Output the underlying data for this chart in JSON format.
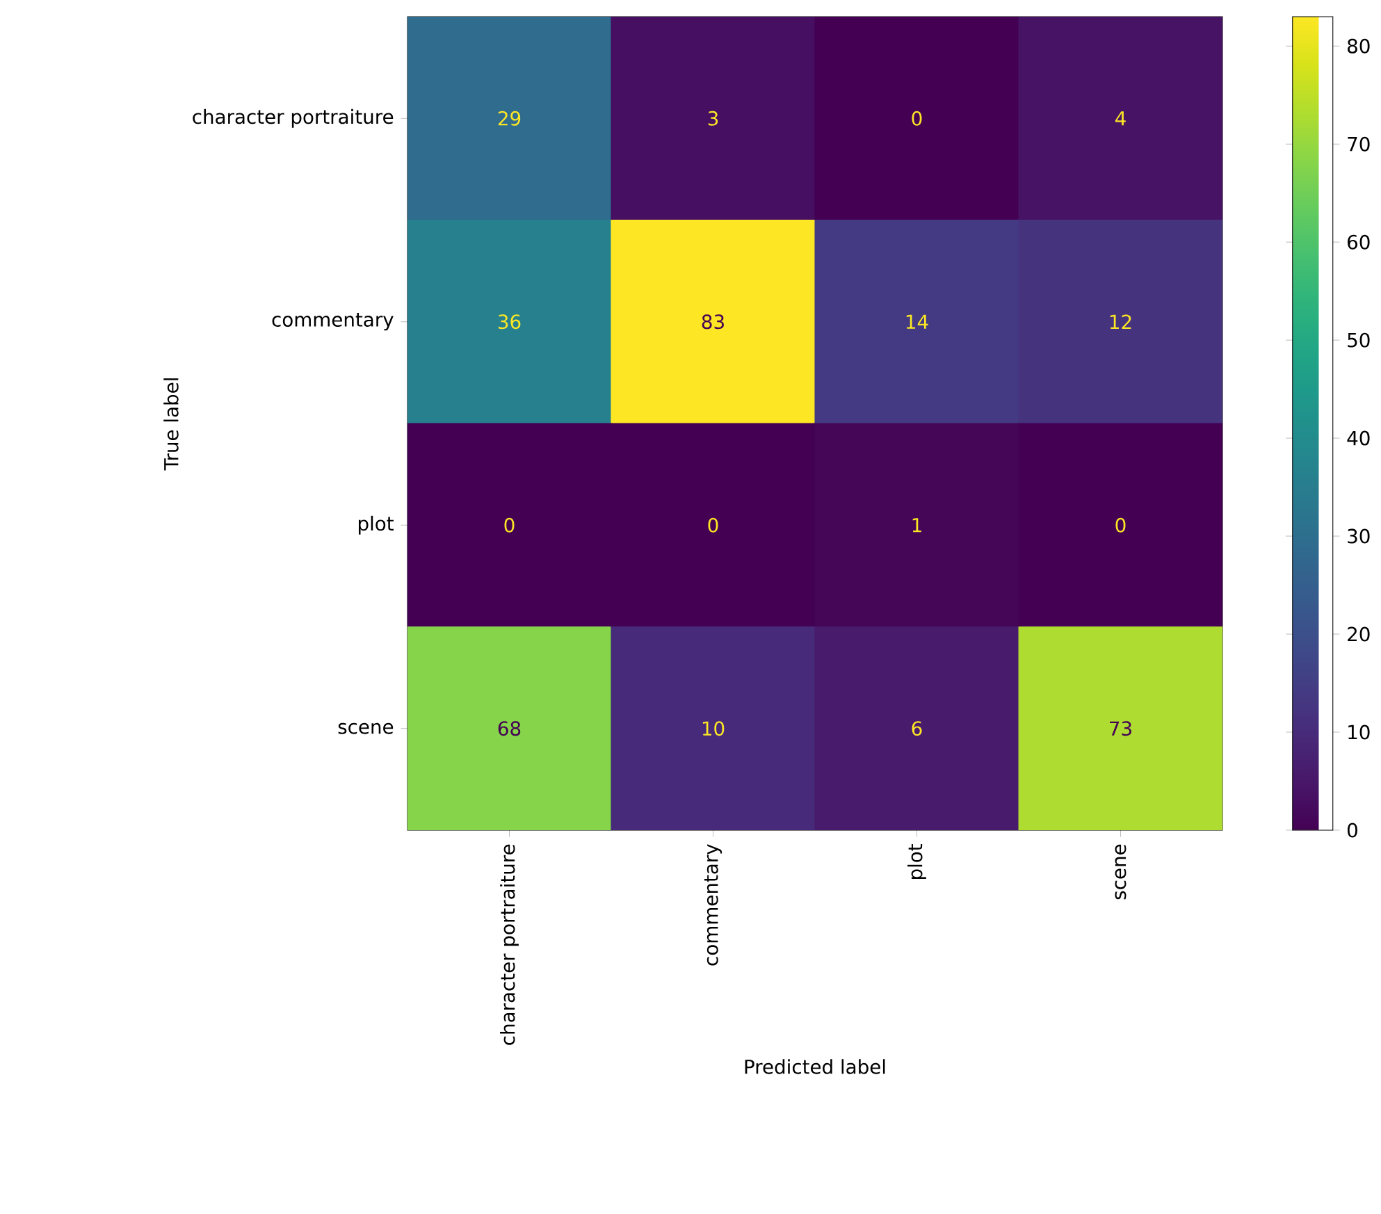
{
  "chart_data": {
    "type": "heatmap",
    "xlabel": "Predicted label",
    "ylabel": "True label",
    "categories": [
      "character portraiture",
      "commentary",
      "plot",
      "scene"
    ],
    "y_categories": [
      "character portraiture",
      "commentary",
      "plot",
      "scene"
    ],
    "cells": [
      [
        29,
        3,
        0,
        4
      ],
      [
        36,
        83,
        14,
        12
      ],
      [
        0,
        0,
        1,
        0
      ],
      [
        68,
        10,
        6,
        73
      ]
    ],
    "clim": [
      0,
      83
    ],
    "cticks": [
      0,
      10,
      20,
      30,
      40,
      50,
      60,
      70,
      80
    ],
    "data_labels": true
  }
}
